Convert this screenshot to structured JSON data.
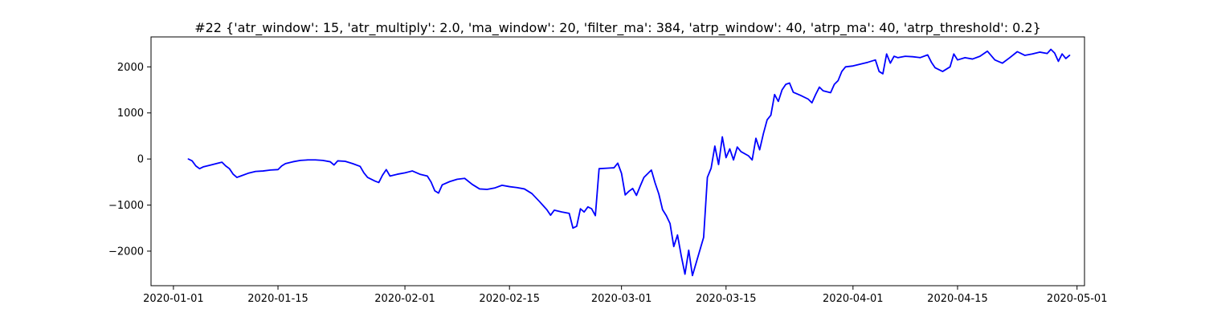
{
  "chart_data": {
    "type": "line",
    "title": "#22 {'atr_window': 15, 'atr_multiply': 2.0, 'ma_window': 20, 'filter_ma': 384, 'atrp_window': 40, 'atrp_ma': 40, 'atrp_threshold': 0.2}",
    "xlabel": "",
    "ylabel": "",
    "xlim": [
      "2019-12-29",
      "2020-05-02"
    ],
    "ylim": [
      -2750,
      2650
    ],
    "x_ticks": [
      "2020-01-01",
      "2020-01-15",
      "2020-02-01",
      "2020-02-15",
      "2020-03-01",
      "2020-03-15",
      "2020-04-01",
      "2020-04-15",
      "2020-05-01"
    ],
    "y_ticks": [
      -2000,
      -1000,
      0,
      1000,
      2000
    ],
    "y_tick_labels": [
      "−2000",
      "−1000",
      "0",
      "1000",
      "2000"
    ],
    "grid": false,
    "series": [
      {
        "color": "#0000ff",
        "points": [
          [
            "2020-01-03",
            0
          ],
          [
            "2020-01-03 12:00",
            -40
          ],
          [
            "2020-01-04",
            -150
          ],
          [
            "2020-01-04 12:00",
            -210
          ],
          [
            "2020-01-05",
            -170
          ],
          [
            "2020-01-06",
            -130
          ],
          [
            "2020-01-07",
            -90
          ],
          [
            "2020-01-07 12:00",
            -70
          ],
          [
            "2020-01-08",
            -150
          ],
          [
            "2020-01-08 12:00",
            -210
          ],
          [
            "2020-01-09",
            -330
          ],
          [
            "2020-01-09 12:00",
            -400
          ],
          [
            "2020-01-10",
            -370
          ],
          [
            "2020-01-11",
            -310
          ],
          [
            "2020-01-12",
            -270
          ],
          [
            "2020-01-13",
            -260
          ],
          [
            "2020-01-14",
            -240
          ],
          [
            "2020-01-15",
            -230
          ],
          [
            "2020-01-15 12:00",
            -150
          ],
          [
            "2020-01-16",
            -100
          ],
          [
            "2020-01-17",
            -60
          ],
          [
            "2020-01-18",
            -30
          ],
          [
            "2020-01-19",
            -20
          ],
          [
            "2020-01-20",
            -20
          ],
          [
            "2020-01-21",
            -30
          ],
          [
            "2020-01-22",
            -60
          ],
          [
            "2020-01-22 12:00",
            -130
          ],
          [
            "2020-01-23",
            -40
          ],
          [
            "2020-01-24",
            -50
          ],
          [
            "2020-01-25",
            -100
          ],
          [
            "2020-01-26",
            -160
          ],
          [
            "2020-01-26 12:00",
            -300
          ],
          [
            "2020-01-27",
            -400
          ],
          [
            "2020-01-28",
            -480
          ],
          [
            "2020-01-28 12:00",
            -510
          ],
          [
            "2020-01-29",
            -350
          ],
          [
            "2020-01-29 12:00",
            -230
          ],
          [
            "2020-01-30",
            -370
          ],
          [
            "2020-01-31",
            -330
          ],
          [
            "2020-02-01",
            -300
          ],
          [
            "2020-02-02",
            -260
          ],
          [
            "2020-02-03",
            -330
          ],
          [
            "2020-02-04",
            -370
          ],
          [
            "2020-02-04 12:00",
            -500
          ],
          [
            "2020-02-05",
            -690
          ],
          [
            "2020-02-05 12:00",
            -740
          ],
          [
            "2020-02-06",
            -560
          ],
          [
            "2020-02-07",
            -490
          ],
          [
            "2020-02-08",
            -440
          ],
          [
            "2020-02-09",
            -420
          ],
          [
            "2020-02-10",
            -550
          ],
          [
            "2020-02-11",
            -650
          ],
          [
            "2020-02-12",
            -660
          ],
          [
            "2020-02-13",
            -630
          ],
          [
            "2020-02-14",
            -570
          ],
          [
            "2020-02-15",
            -600
          ],
          [
            "2020-02-16",
            -620
          ],
          [
            "2020-02-17",
            -650
          ],
          [
            "2020-02-18",
            -750
          ],
          [
            "2020-02-19",
            -920
          ],
          [
            "2020-02-20",
            -1100
          ],
          [
            "2020-02-20 12:00",
            -1220
          ],
          [
            "2020-02-21",
            -1110
          ],
          [
            "2020-02-22",
            -1150
          ],
          [
            "2020-02-23",
            -1180
          ],
          [
            "2020-02-23 12:00",
            -1500
          ],
          [
            "2020-02-24",
            -1460
          ],
          [
            "2020-02-24 12:00",
            -1080
          ],
          [
            "2020-02-25",
            -1150
          ],
          [
            "2020-02-25 12:00",
            -1040
          ],
          [
            "2020-02-26",
            -1080
          ],
          [
            "2020-02-26 12:00",
            -1230
          ],
          [
            "2020-02-27",
            -210
          ],
          [
            "2020-02-28",
            -200
          ],
          [
            "2020-02-29",
            -190
          ],
          [
            "2020-02-29 12:00",
            -90
          ],
          [
            "2020-03-01",
            -310
          ],
          [
            "2020-03-01 12:00",
            -780
          ],
          [
            "2020-03-02",
            -700
          ],
          [
            "2020-03-02 12:00",
            -640
          ],
          [
            "2020-03-03",
            -790
          ],
          [
            "2020-03-03 12:00",
            -590
          ],
          [
            "2020-03-04",
            -400
          ],
          [
            "2020-03-05",
            -240
          ],
          [
            "2020-03-05 12:00",
            -520
          ],
          [
            "2020-03-06",
            -760
          ],
          [
            "2020-03-06 12:00",
            -1100
          ],
          [
            "2020-03-07",
            -1230
          ],
          [
            "2020-03-07 12:00",
            -1400
          ],
          [
            "2020-03-08",
            -1900
          ],
          [
            "2020-03-08 12:00",
            -1650
          ],
          [
            "2020-03-09",
            -2100
          ],
          [
            "2020-03-09 12:00",
            -2500
          ],
          [
            "2020-03-10",
            -1980
          ],
          [
            "2020-03-10 12:00",
            -2530
          ],
          [
            "2020-03-12",
            -1700
          ],
          [
            "2020-03-12 12:00",
            -400
          ],
          [
            "2020-03-13",
            -200
          ],
          [
            "2020-03-13 12:00",
            280
          ],
          [
            "2020-03-14",
            -120
          ],
          [
            "2020-03-14 12:00",
            480
          ],
          [
            "2020-03-15",
            30
          ],
          [
            "2020-03-15 12:00",
            220
          ],
          [
            "2020-03-16",
            -20
          ],
          [
            "2020-03-16 12:00",
            260
          ],
          [
            "2020-03-17",
            160
          ],
          [
            "2020-03-18",
            70
          ],
          [
            "2020-03-18 12:00",
            -20
          ],
          [
            "2020-03-19",
            450
          ],
          [
            "2020-03-19 12:00",
            200
          ],
          [
            "2020-03-20",
            550
          ],
          [
            "2020-03-20 12:00",
            850
          ],
          [
            "2020-03-21",
            950
          ],
          [
            "2020-03-21 12:00",
            1400
          ],
          [
            "2020-03-22",
            1250
          ],
          [
            "2020-03-22 12:00",
            1500
          ],
          [
            "2020-03-23",
            1620
          ],
          [
            "2020-03-23 12:00",
            1650
          ],
          [
            "2020-03-24",
            1450
          ],
          [
            "2020-03-25",
            1380
          ],
          [
            "2020-03-26",
            1300
          ],
          [
            "2020-03-26 12:00",
            1220
          ],
          [
            "2020-03-27",
            1400
          ],
          [
            "2020-03-27 12:00",
            1560
          ],
          [
            "2020-03-28",
            1480
          ],
          [
            "2020-03-29",
            1440
          ],
          [
            "2020-03-29 12:00",
            1620
          ],
          [
            "2020-03-30",
            1700
          ],
          [
            "2020-03-30 12:00",
            1900
          ],
          [
            "2020-03-31",
            2000
          ],
          [
            "2020-04-01",
            2020
          ],
          [
            "2020-04-02",
            2060
          ],
          [
            "2020-04-03",
            2100
          ],
          [
            "2020-04-04",
            2150
          ],
          [
            "2020-04-04 12:00",
            1900
          ],
          [
            "2020-04-05",
            1850
          ],
          [
            "2020-04-05 12:00",
            2280
          ],
          [
            "2020-04-06",
            2080
          ],
          [
            "2020-04-06 12:00",
            2230
          ],
          [
            "2020-04-07",
            2200
          ],
          [
            "2020-04-08",
            2230
          ],
          [
            "2020-04-09",
            2220
          ],
          [
            "2020-04-10",
            2200
          ],
          [
            "2020-04-11",
            2260
          ],
          [
            "2020-04-11 12:00",
            2100
          ],
          [
            "2020-04-12",
            1980
          ],
          [
            "2020-04-13",
            1900
          ],
          [
            "2020-04-14",
            2000
          ],
          [
            "2020-04-14 12:00",
            2280
          ],
          [
            "2020-04-15",
            2150
          ],
          [
            "2020-04-16",
            2200
          ],
          [
            "2020-04-17",
            2170
          ],
          [
            "2020-04-18",
            2230
          ],
          [
            "2020-04-19",
            2340
          ],
          [
            "2020-04-20",
            2150
          ],
          [
            "2020-04-21",
            2080
          ],
          [
            "2020-04-22",
            2200
          ],
          [
            "2020-04-23",
            2330
          ],
          [
            "2020-04-24",
            2250
          ],
          [
            "2020-04-25",
            2280
          ],
          [
            "2020-04-26",
            2320
          ],
          [
            "2020-04-27",
            2290
          ],
          [
            "2020-04-27 12:00",
            2380
          ],
          [
            "2020-04-28",
            2300
          ],
          [
            "2020-04-28 12:00",
            2120
          ],
          [
            "2020-04-29",
            2280
          ],
          [
            "2020-04-29 12:00",
            2180
          ],
          [
            "2020-04-30",
            2250
          ]
        ]
      }
    ]
  }
}
